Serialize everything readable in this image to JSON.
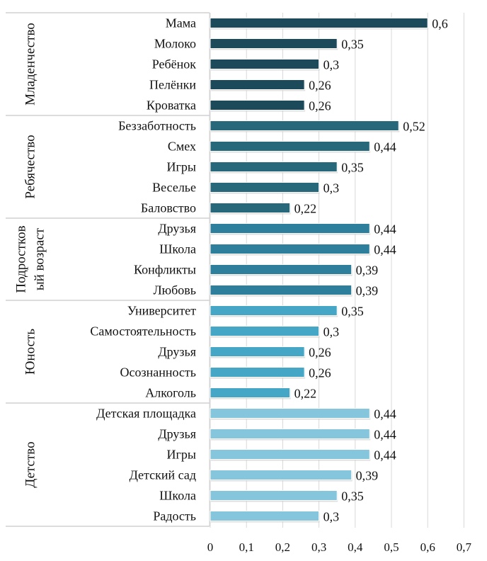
{
  "chart_data": {
    "type": "bar",
    "orientation": "horizontal",
    "title": "",
    "xlabel": "",
    "ylabel": "",
    "xlim": [
      0,
      0.7
    ],
    "x_ticks": [
      "0",
      "0,1",
      "0,2",
      "0,3",
      "0,4",
      "0,5",
      "0,6",
      "0,7"
    ],
    "x_tick_values": [
      0,
      0.1,
      0.2,
      0.3,
      0.4,
      0.5,
      0.6,
      0.7
    ],
    "grid": "vertical",
    "legend": "none",
    "groups": [
      {
        "name": "Младенчество",
        "color": "#1d4a5a",
        "items": [
          {
            "label": "Мама",
            "value": 0.6,
            "value_label": "0,6"
          },
          {
            "label": "Молоко",
            "value": 0.35,
            "value_label": "0,35"
          },
          {
            "label": "Ребёнок",
            "value": 0.3,
            "value_label": "0,3"
          },
          {
            "label": "Пелёнки",
            "value": 0.26,
            "value_label": "0,26"
          },
          {
            "label": "Кроватка",
            "value": 0.26,
            "value_label": "0,26"
          }
        ]
      },
      {
        "name": "Ребячество",
        "color": "#27687a",
        "items": [
          {
            "label": "Беззаботность",
            "value": 0.52,
            "value_label": "0,52"
          },
          {
            "label": "Смех",
            "value": 0.44,
            "value_label": "0,44"
          },
          {
            "label": "Игры",
            "value": 0.35,
            "value_label": "0,35"
          },
          {
            "label": "Веселье",
            "value": 0.3,
            "value_label": "0,3"
          },
          {
            "label": "Баловство",
            "value": 0.22,
            "value_label": "0,22"
          }
        ]
      },
      {
        "name": "Подростков ый возраст",
        "name_lines": [
          "Подростков",
          "ый возраст"
        ],
        "color": "#2e7f9b",
        "items": [
          {
            "label": "Друзья",
            "value": 0.44,
            "value_label": "0,44"
          },
          {
            "label": "Школа",
            "value": 0.44,
            "value_label": "0,44"
          },
          {
            "label": "Конфликты",
            "value": 0.39,
            "value_label": "0,39"
          },
          {
            "label": "Любовь",
            "value": 0.39,
            "value_label": "0,39"
          }
        ]
      },
      {
        "name": "Юность",
        "color": "#45a7c5",
        "items": [
          {
            "label": "Университет",
            "value": 0.35,
            "value_label": "0,35"
          },
          {
            "label": "Самостоятельность",
            "value": 0.3,
            "value_label": "0,3"
          },
          {
            "label": "Друзья",
            "value": 0.26,
            "value_label": "0,26"
          },
          {
            "label": "Осознанность",
            "value": 0.26,
            "value_label": "0,26"
          },
          {
            "label": "Алкоголь",
            "value": 0.22,
            "value_label": "0,22"
          }
        ]
      },
      {
        "name": "Детство",
        "color": "#86c6dc",
        "items": [
          {
            "label": "Детская площадка",
            "value": 0.44,
            "value_label": "0,44"
          },
          {
            "label": "Друзья",
            "value": 0.44,
            "value_label": "0,44"
          },
          {
            "label": "Игры",
            "value": 0.44,
            "value_label": "0,44"
          },
          {
            "label": "Детский сад",
            "value": 0.39,
            "value_label": "0,39"
          },
          {
            "label": "Школа",
            "value": 0.35,
            "value_label": "0,35"
          },
          {
            "label": "Радость",
            "value": 0.3,
            "value_label": "0,3"
          }
        ]
      }
    ]
  }
}
